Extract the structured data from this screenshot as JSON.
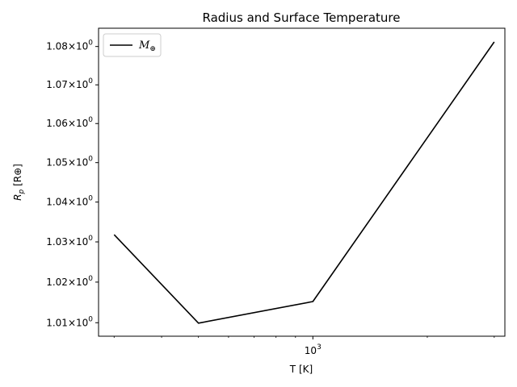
{
  "chart_data": {
    "type": "line",
    "title": "Radius and Surface Temperature",
    "xlabel": "T [K]",
    "ylabel": "R_p [R⊕]",
    "x_scale": "log",
    "y_scale": "log",
    "xlim": [
      273,
      3200
    ],
    "ylim": [
      1.0067,
      1.0848
    ],
    "x_major_ticks": [
      {
        "value": 1000,
        "label": "10^3"
      }
    ],
    "x_minor_ticks": [
      300,
      400,
      500,
      600,
      700,
      800,
      900,
      2000,
      3000
    ],
    "y_ticks": [
      {
        "value": 1.01,
        "label": "1.01×10^0"
      },
      {
        "value": 1.02,
        "label": "1.02×10^0"
      },
      {
        "value": 1.03,
        "label": "1.03×10^0"
      },
      {
        "value": 1.04,
        "label": "1.04×10^0"
      },
      {
        "value": 1.05,
        "label": "1.05×10^0"
      },
      {
        "value": 1.06,
        "label": "1.06×10^0"
      },
      {
        "value": 1.07,
        "label": "1.07×10^0"
      },
      {
        "value": 1.08,
        "label": "1.08×10^0"
      }
    ],
    "grid": false,
    "legend_position": "top-left",
    "series": [
      {
        "name": "M⊕",
        "color": "#000000",
        "x": [
          300,
          500,
          1000,
          3000
        ],
        "y": [
          1.0318,
          1.0099,
          1.0152,
          1.0812
        ]
      }
    ]
  }
}
